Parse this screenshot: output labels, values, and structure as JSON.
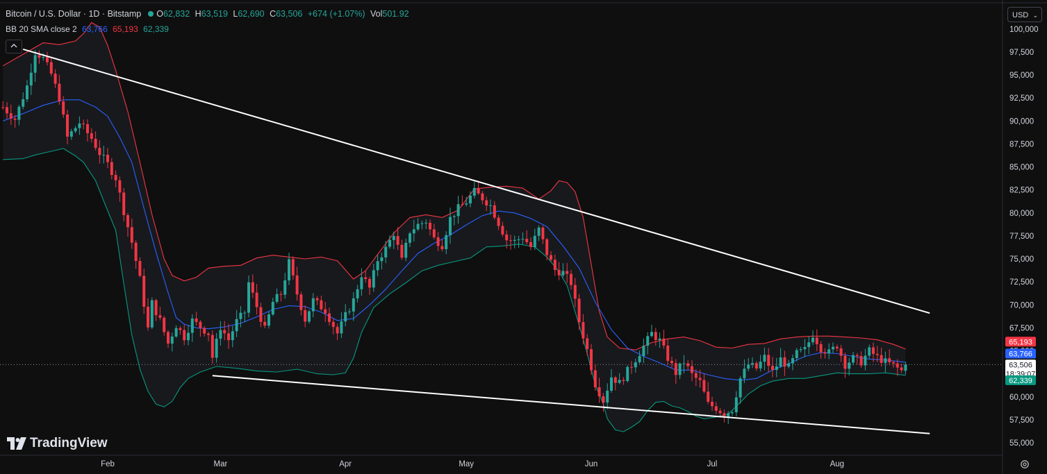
{
  "header": {
    "title": "Bitcoin / U.S. Dollar · 1D · Bitstamp",
    "o_label": "O",
    "o_value": "62,832",
    "h_label": "H",
    "h_value": "63,519",
    "l_label": "L",
    "l_value": "62,690",
    "c_label": "C",
    "c_value": "63,506",
    "change": "+674 (+1.07%)",
    "vol_label": "Vol",
    "vol_value": "501.92"
  },
  "indicator": {
    "name": "BB 20 SMA close 2",
    "basis": "63,766",
    "upper": "65,193",
    "lower": "62,339"
  },
  "toolbar": {
    "currency": "USD",
    "collapse_icon": "chevron-up-icon",
    "settings_icon": "gear-icon"
  },
  "brand": {
    "name": "TradingView"
  },
  "price_tags": {
    "upper": "65,193",
    "basis": "63,766",
    "last": "63,506",
    "countdown": "18:39:07",
    "lower": "62,339"
  },
  "colors": {
    "up": "#26a69a",
    "down": "#f23645",
    "basis": "#2962ff",
    "upper": "#f23645",
    "lower": "#089981",
    "trendline": "#ffffff"
  },
  "chart_data": {
    "type": "candlestick",
    "ylim": [
      54500,
      101000
    ],
    "y_ticks": [
      55000,
      57500,
      60000,
      62500,
      65000,
      67500,
      70000,
      72500,
      75000,
      77500,
      80000,
      82500,
      85000,
      87500,
      90000,
      92500,
      95000,
      97500,
      100000
    ],
    "y_tick_labels": [
      "55,000",
      "57,500",
      "60,000",
      "62,500",
      "65,000",
      "67,500",
      "70,000",
      "72,500",
      "75,000",
      "77,500",
      "80,000",
      "82,500",
      "85,000",
      "87,500",
      "90,000",
      "92,500",
      "95,000",
      "97,500",
      "100,000"
    ],
    "x_labels": [
      {
        "label": "Feb",
        "day": 31
      },
      {
        "label": "Mar",
        "day": 59
      },
      {
        "label": "Apr",
        "day": 90
      },
      {
        "label": "May",
        "day": 120
      },
      {
        "label": "Jun",
        "day": 151
      },
      {
        "label": "Jul",
        "day": 181
      },
      {
        "label": "Aug",
        "day": 212
      }
    ],
    "x_range_days": [
      5,
      230
    ],
    "last_price": 63506,
    "close_path": [
      [
        5,
        91500
      ],
      [
        8,
        90200
      ],
      [
        11,
        93800
      ],
      [
        13,
        97500
      ],
      [
        15,
        96800
      ],
      [
        17,
        95100
      ],
      [
        19,
        92500
      ],
      [
        21,
        88200
      ],
      [
        24,
        89800
      ],
      [
        27,
        88100
      ],
      [
        29,
        86500
      ],
      [
        31,
        85300
      ],
      [
        33,
        83800
      ],
      [
        35,
        80200
      ],
      [
        37,
        76800
      ],
      [
        39,
        72800
      ],
      [
        41,
        67400
      ],
      [
        42,
        70200
      ],
      [
        44,
        68300
      ],
      [
        46,
        65800
      ],
      [
        48,
        67800
      ],
      [
        50,
        66500
      ],
      [
        52,
        68300
      ],
      [
        54,
        67600
      ],
      [
        56,
        66900
      ],
      [
        57,
        64300
      ],
      [
        59,
        67600
      ],
      [
        61,
        66200
      ],
      [
        63,
        68200
      ],
      [
        65,
        69200
      ],
      [
        66,
        72400
      ],
      [
        68,
        69800
      ],
      [
        70,
        67300
      ],
      [
        72,
        70300
      ],
      [
        74,
        71200
      ],
      [
        76,
        74600
      ],
      [
        78,
        71200
      ],
      [
        80,
        68400
      ],
      [
        82,
        70500
      ],
      [
        85,
        69400
      ],
      [
        88,
        66900
      ],
      [
        90,
        68800
      ],
      [
        92,
        70500
      ],
      [
        94,
        73300
      ],
      [
        96,
        71800
      ],
      [
        98,
        74900
      ],
      [
        100,
        76100
      ],
      [
        102,
        77800
      ],
      [
        104,
        74800
      ],
      [
        106,
        78000
      ],
      [
        108,
        78700
      ],
      [
        110,
        79100
      ],
      [
        112,
        77200
      ],
      [
        114,
        76500
      ],
      [
        116,
        79400
      ],
      [
        118,
        80500
      ],
      [
        120,
        81200
      ],
      [
        122,
        82300
      ],
      [
        124,
        81600
      ],
      [
        126,
        80800
      ],
      [
        128,
        78900
      ],
      [
        130,
        77100
      ],
      [
        132,
        76900
      ],
      [
        134,
        77400
      ],
      [
        136,
        76300
      ],
      [
        138,
        78200
      ],
      [
        140,
        75600
      ],
      [
        142,
        73800
      ],
      [
        144,
        73500
      ],
      [
        146,
        72400
      ],
      [
        148,
        68200
      ],
      [
        150,
        65100
      ],
      [
        152,
        61400
      ],
      [
        154,
        59600
      ],
      [
        156,
        62200
      ],
      [
        158,
        61500
      ],
      [
        160,
        62800
      ],
      [
        162,
        64100
      ],
      [
        164,
        65500
      ],
      [
        166,
        66900
      ],
      [
        168,
        66100
      ],
      [
        170,
        64200
      ],
      [
        172,
        62600
      ],
      [
        174,
        63800
      ],
      [
        176,
        62400
      ],
      [
        178,
        61600
      ],
      [
        180,
        59200
      ],
      [
        182,
        58800
      ],
      [
        184,
        58100
      ],
      [
        186,
        58600
      ],
      [
        188,
        62000
      ],
      [
        190,
        63500
      ],
      [
        192,
        63100
      ],
      [
        194,
        64300
      ],
      [
        196,
        62700
      ],
      [
        198,
        64100
      ],
      [
        200,
        63200
      ],
      [
        202,
        64700
      ],
      [
        204,
        65100
      ],
      [
        206,
        66800
      ],
      [
        208,
        65300
      ],
      [
        210,
        64800
      ],
      [
        212,
        65600
      ],
      [
        214,
        63500
      ],
      [
        216,
        64200
      ],
      [
        218,
        63800
      ],
      [
        220,
        65000
      ],
      [
        222,
        64300
      ],
      [
        224,
        63800
      ],
      [
        226,
        63400
      ],
      [
        228,
        62832
      ],
      [
        229,
        63506
      ]
    ],
    "bollinger": {
      "upper_path": [
        [
          5,
          96000
        ],
        [
          11,
          97500
        ],
        [
          15,
          98500
        ],
        [
          19,
          98300
        ],
        [
          23,
          98700
        ],
        [
          25,
          99500
        ],
        [
          27,
          100700
        ],
        [
          29,
          100200
        ],
        [
          31,
          98200
        ],
        [
          33,
          95500
        ],
        [
          36,
          91000
        ],
        [
          39,
          85500
        ],
        [
          42,
          79800
        ],
        [
          45,
          75000
        ],
        [
          47,
          73200
        ],
        [
          50,
          72600
        ],
        [
          53,
          73000
        ],
        [
          56,
          74000
        ],
        [
          60,
          74200
        ],
        [
          64,
          74300
        ],
        [
          68,
          75100
        ],
        [
          72,
          75400
        ],
        [
          76,
          75200
        ],
        [
          80,
          75000
        ],
        [
          84,
          75200
        ],
        [
          88,
          74800
        ],
        [
          90,
          73800
        ],
        [
          92,
          72800
        ],
        [
          95,
          73700
        ],
        [
          98,
          75500
        ],
        [
          102,
          77800
        ],
        [
          106,
          79500
        ],
        [
          110,
          79800
        ],
        [
          114,
          79500
        ],
        [
          118,
          80300
        ],
        [
          122,
          82600
        ],
        [
          126,
          82800
        ],
        [
          130,
          82900
        ],
        [
          134,
          82700
        ],
        [
          138,
          81500
        ],
        [
          141,
          82400
        ],
        [
          143,
          83500
        ],
        [
          145,
          83300
        ],
        [
          147,
          82300
        ],
        [
          149,
          79500
        ],
        [
          151,
          74400
        ],
        [
          153,
          69300
        ],
        [
          155,
          66500
        ],
        [
          158,
          65300
        ],
        [
          162,
          65100
        ],
        [
          166,
          65900
        ],
        [
          170,
          66300
        ],
        [
          174,
          66500
        ],
        [
          178,
          66100
        ],
        [
          182,
          65400
        ],
        [
          186,
          65300
        ],
        [
          190,
          65700
        ],
        [
          194,
          65800
        ],
        [
          198,
          66300
        ],
        [
          202,
          66500
        ],
        [
          206,
          66600
        ],
        [
          210,
          66600
        ],
        [
          214,
          66500
        ],
        [
          218,
          66400
        ],
        [
          222,
          66200
        ],
        [
          226,
          65700
        ],
        [
          229,
          65193
        ]
      ],
      "basis_path": [
        [
          5,
          90000
        ],
        [
          10,
          90800
        ],
        [
          15,
          91700
        ],
        [
          20,
          92300
        ],
        [
          24,
          92300
        ],
        [
          28,
          91500
        ],
        [
          31,
          90500
        ],
        [
          34,
          88200
        ],
        [
          37,
          85500
        ],
        [
          40,
          80500
        ],
        [
          43,
          75700
        ],
        [
          46,
          71300
        ],
        [
          48,
          68600
        ],
        [
          50,
          67900
        ],
        [
          53,
          67500
        ],
        [
          56,
          67400
        ],
        [
          60,
          67600
        ],
        [
          64,
          68000
        ],
        [
          68,
          68700
        ],
        [
          72,
          69500
        ],
        [
          76,
          69900
        ],
        [
          80,
          69800
        ],
        [
          84,
          69200
        ],
        [
          88,
          68300
        ],
        [
          92,
          68500
        ],
        [
          96,
          70000
        ],
        [
          100,
          71700
        ],
        [
          104,
          73700
        ],
        [
          108,
          75600
        ],
        [
          112,
          76700
        ],
        [
          116,
          77600
        ],
        [
          120,
          78700
        ],
        [
          124,
          79700
        ],
        [
          128,
          80200
        ],
        [
          132,
          80000
        ],
        [
          136,
          79400
        ],
        [
          140,
          78500
        ],
        [
          144,
          76400
        ],
        [
          148,
          74000
        ],
        [
          152,
          70300
        ],
        [
          156,
          67300
        ],
        [
          160,
          65300
        ],
        [
          164,
          64400
        ],
        [
          168,
          63700
        ],
        [
          172,
          62900
        ],
        [
          176,
          62900
        ],
        [
          180,
          62400
        ],
        [
          184,
          62000
        ],
        [
          188,
          61800
        ],
        [
          192,
          62000
        ],
        [
          196,
          62900
        ],
        [
          200,
          63600
        ],
        [
          204,
          64400
        ],
        [
          208,
          64800
        ],
        [
          212,
          64700
        ],
        [
          216,
          64400
        ],
        [
          220,
          64100
        ],
        [
          224,
          64000
        ],
        [
          229,
          63766
        ]
      ],
      "lower_path": [
        [
          5,
          85800
        ],
        [
          10,
          85900
        ],
        [
          13,
          86300
        ],
        [
          17,
          86700
        ],
        [
          20,
          87000
        ],
        [
          23,
          86200
        ],
        [
          25,
          85500
        ],
        [
          28,
          83500
        ],
        [
          30,
          81300
        ],
        [
          33,
          78100
        ],
        [
          35,
          72300
        ],
        [
          37,
          66700
        ],
        [
          39,
          63000
        ],
        [
          41,
          60600
        ],
        [
          43,
          59200
        ],
        [
          45,
          58900
        ],
        [
          47,
          59500
        ],
        [
          49,
          61000
        ],
        [
          51,
          62000
        ],
        [
          54,
          62700
        ],
        [
          58,
          63300
        ],
        [
          63,
          63100
        ],
        [
          68,
          62800
        ],
        [
          73,
          62700
        ],
        [
          78,
          63000
        ],
        [
          83,
          62500
        ],
        [
          87,
          62400
        ],
        [
          90,
          62600
        ],
        [
          92,
          64200
        ],
        [
          94,
          67000
        ],
        [
          97,
          69700
        ],
        [
          101,
          71200
        ],
        [
          105,
          72400
        ],
        [
          109,
          73700
        ],
        [
          113,
          74300
        ],
        [
          117,
          74700
        ],
        [
          121,
          75100
        ],
        [
          125,
          76300
        ],
        [
          129,
          76400
        ],
        [
          133,
          76600
        ],
        [
          137,
          76300
        ],
        [
          140,
          75200
        ],
        [
          143,
          73600
        ],
        [
          145,
          72100
        ],
        [
          148,
          67800
        ],
        [
          150,
          64700
        ],
        [
          152,
          61300
        ],
        [
          154,
          59200
        ],
        [
          155,
          57600
        ],
        [
          157,
          56400
        ],
        [
          159,
          56200
        ],
        [
          161,
          56700
        ],
        [
          163,
          57300
        ],
        [
          165,
          58500
        ],
        [
          167,
          59400
        ],
        [
          169,
          59500
        ],
        [
          171,
          59000
        ],
        [
          173,
          58800
        ],
        [
          175,
          58400
        ],
        [
          177,
          57900
        ],
        [
          179,
          57600
        ],
        [
          182,
          57800
        ],
        [
          185,
          58100
        ],
        [
          188,
          59400
        ],
        [
          190,
          60300
        ],
        [
          193,
          61200
        ],
        [
          196,
          61700
        ],
        [
          200,
          62000
        ],
        [
          204,
          62000
        ],
        [
          208,
          62300
        ],
        [
          212,
          62600
        ],
        [
          216,
          62500
        ],
        [
          220,
          62500
        ],
        [
          224,
          62600
        ],
        [
          229,
          62339
        ]
      ]
    },
    "trendlines": [
      {
        "from": [
          10,
          97800
        ],
        "to": [
          235,
          69100
        ]
      },
      {
        "from": [
          57,
          62300
        ],
        "to": [
          235,
          56000
        ]
      }
    ]
  }
}
